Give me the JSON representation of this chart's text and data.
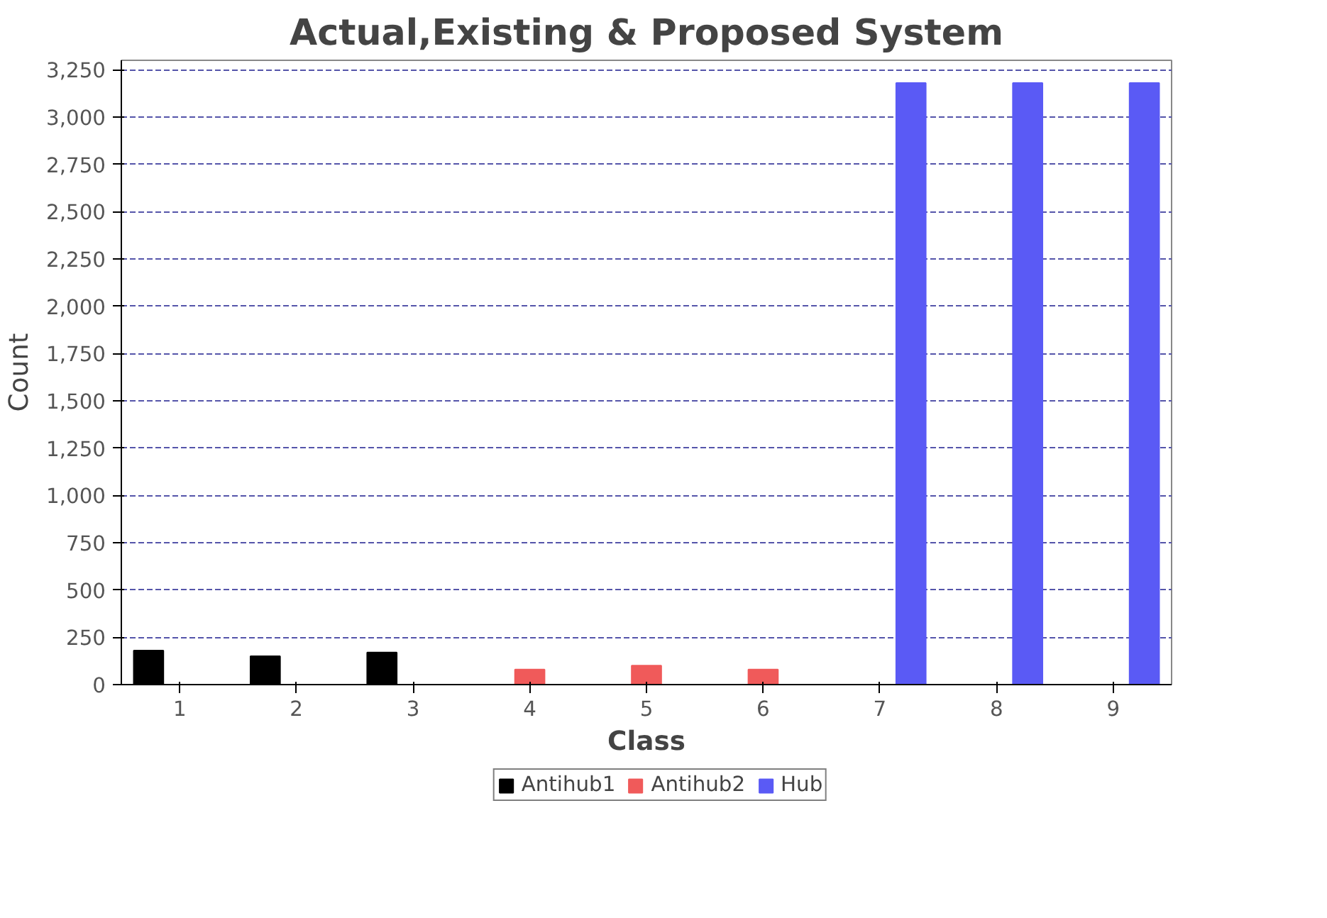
{
  "chart_data": {
    "type": "bar",
    "title": "Actual,Existing & Proposed System",
    "xlabel": "Class",
    "ylabel": "Count",
    "categories": [
      "1",
      "2",
      "3",
      "4",
      "5",
      "6",
      "7",
      "8",
      "9"
    ],
    "series": [
      {
        "name": "Antihub1",
        "color": "#000000",
        "values": [
          180,
          150,
          170,
          null,
          null,
          null,
          null,
          null,
          null
        ]
      },
      {
        "name": "Antihub2",
        "color": "#f05a5a",
        "values": [
          null,
          null,
          null,
          80,
          100,
          80,
          null,
          null,
          null
        ]
      },
      {
        "name": "Hub",
        "color": "#5a5af5",
        "values": [
          null,
          null,
          null,
          null,
          null,
          null,
          3180,
          3180,
          3180
        ]
      }
    ],
    "ylim": [
      0,
      3300
    ],
    "yticks": [
      {
        "value": 0,
        "label": "0"
      },
      {
        "value": 250,
        "label": "250"
      },
      {
        "value": 500,
        "label": "500"
      },
      {
        "value": 750,
        "label": "750"
      },
      {
        "value": 1000,
        "label": "1,000"
      },
      {
        "value": 1250,
        "label": "1,250"
      },
      {
        "value": 1500,
        "label": "1,500"
      },
      {
        "value": 1750,
        "label": "1,750"
      },
      {
        "value": 2000,
        "label": "2,000"
      },
      {
        "value": 2250,
        "label": "2,250"
      },
      {
        "value": 2500,
        "label": "2,500"
      },
      {
        "value": 2750,
        "label": "2,750"
      },
      {
        "value": 3000,
        "label": "3,000"
      },
      {
        "value": 3250,
        "label": "3,250"
      }
    ],
    "grid": "y",
    "legend": "bottom"
  }
}
